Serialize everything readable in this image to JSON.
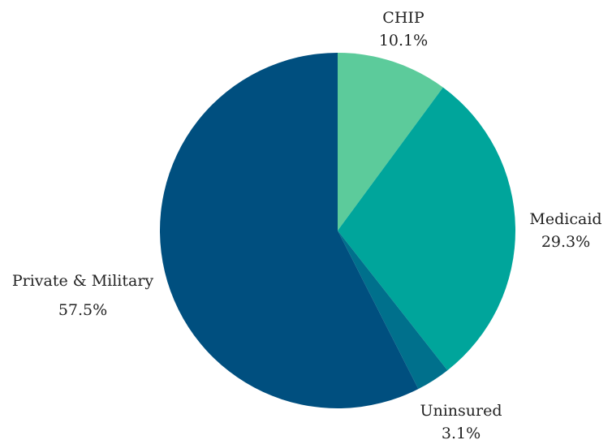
{
  "chart_data": {
    "type": "pie",
    "title": "",
    "start_angle_deg": 0,
    "direction": "clockwise",
    "legend": "none",
    "slices": [
      {
        "label": "CHIP",
        "value": 10.1,
        "value_label": "10.1%",
        "color": "#5ccb9b"
      },
      {
        "label": "Medicaid",
        "value": 29.3,
        "value_label": "29.3%",
        "color": "#00a59b"
      },
      {
        "label": "Uninsured",
        "value": 3.1,
        "value_label": "3.1%",
        "color": "#00708c"
      },
      {
        "label": "Private & Military",
        "value": 57.5,
        "value_label": "57.5%",
        "color": "#004f7f"
      }
    ]
  }
}
